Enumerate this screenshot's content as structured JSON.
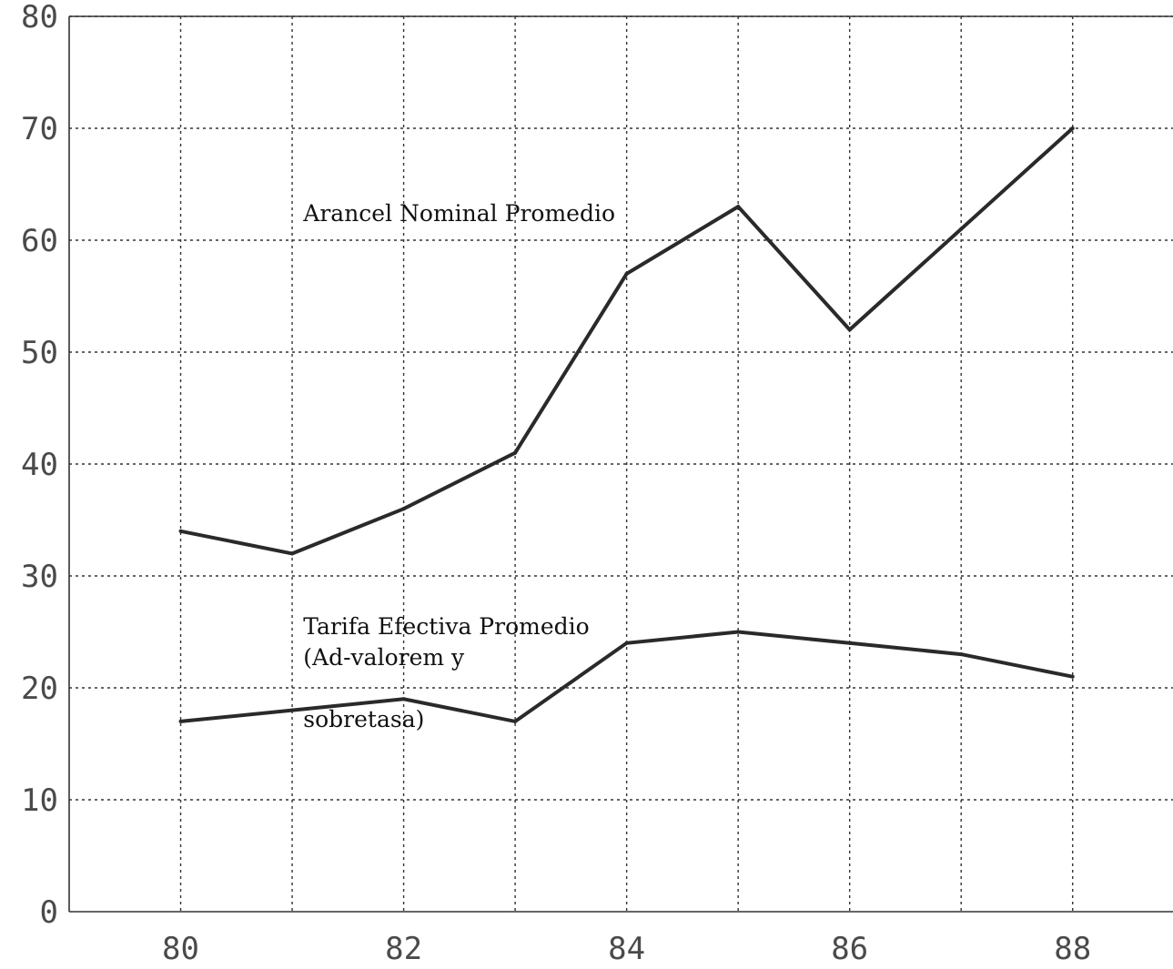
{
  "chart_data": {
    "type": "line",
    "title": "",
    "xlabel": "",
    "ylabel": "",
    "x": [
      80,
      81,
      82,
      83,
      84,
      85,
      86,
      87,
      88
    ],
    "x_ticks": [
      "80",
      "82",
      "84",
      "86",
      "88"
    ],
    "y_ticks": [
      "0",
      "10",
      "20",
      "30",
      "40",
      "50",
      "60",
      "70",
      "80"
    ],
    "xlim": [
      79,
      88.9
    ],
    "ylim": [
      0,
      80
    ],
    "grid": true,
    "series": [
      {
        "label_lines": [
          "Arancel Nominal Promedio"
        ],
        "values": [
          34,
          32,
          36,
          41,
          57,
          63,
          52,
          61,
          70
        ],
        "label_anchor": {
          "x": 81.1,
          "y": 61.7
        },
        "color": "#2a2a2a"
      },
      {
        "label_lines": [
          "Tarifa Efectiva Promedio",
          "(Ad-valorem y",
          "",
          "sobretasa)"
        ],
        "values": [
          17,
          18,
          19,
          17,
          24,
          25,
          24,
          23,
          21
        ],
        "label_anchor": {
          "x": 81.1,
          "y": 24.8
        },
        "color": "#2a2a2a"
      }
    ]
  }
}
